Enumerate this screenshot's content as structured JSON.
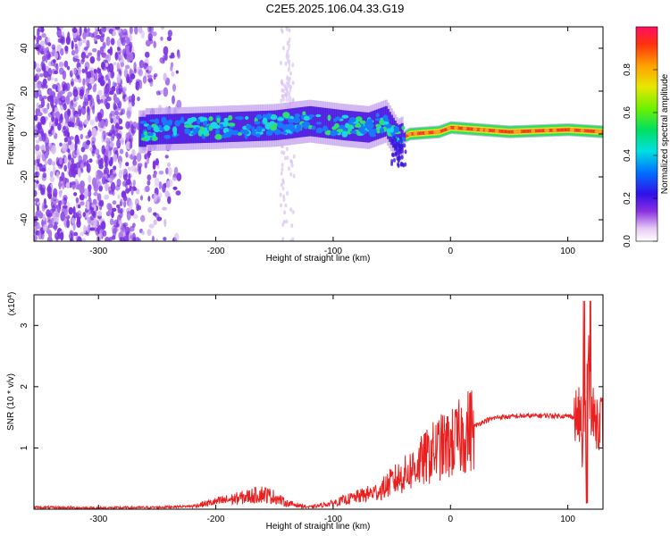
{
  "title": "C2E5.2025.106.04.33.G19",
  "colors": {
    "snr_line": "#e82020",
    "scatter_noise": "#8a3ae6",
    "frame": "#000000"
  },
  "chart_data": [
    {
      "type": "heatmap",
      "xlabel": "Height of straight line (km)",
      "ylabel": "Frequency (Hz)",
      "xlim": [
        -355,
        130
      ],
      "ylim": [
        -50,
        50
      ],
      "x_ticks": [
        -300,
        -200,
        -100,
        0,
        100
      ],
      "y_ticks": [
        -40,
        -20,
        0,
        20,
        40
      ],
      "colorbar": {
        "label": "Normalized spectral amplitude",
        "range": [
          0,
          1
        ],
        "ticks": [
          0.0,
          0.2,
          0.4,
          0.6,
          0.8
        ]
      },
      "ridge": [
        {
          "x": -260,
          "y": 2
        },
        {
          "x": -200,
          "y": 3
        },
        {
          "x": -150,
          "y": 4
        },
        {
          "x": -120,
          "y": 6
        },
        {
          "x": -90,
          "y": 4
        },
        {
          "x": -70,
          "y": 3
        },
        {
          "x": -55,
          "y": 6
        },
        {
          "x": -45,
          "y": -3
        },
        {
          "x": -35,
          "y": 0
        },
        {
          "x": -10,
          "y": 1
        },
        {
          "x": 0,
          "y": 3
        },
        {
          "x": 50,
          "y": 1
        },
        {
          "x": 100,
          "y": 2
        },
        {
          "x": 130,
          "y": 1
        }
      ]
    },
    {
      "type": "line",
      "xlabel": "Height of straight line (km)",
      "ylabel": "SNR (10 * v/v)",
      "scale_label": "(x10",
      "scale_exp": "4",
      "scale_close": ")",
      "xlim": [
        -355,
        130
      ],
      "ylim": [
        0,
        3.5
      ],
      "x_ticks": [
        -300,
        -200,
        -100,
        0,
        100
      ],
      "y_ticks": [
        1,
        2,
        3
      ],
      "series": [
        {
          "x": [
            -355,
            -300,
            -250,
            -220,
            -200,
            -180,
            -160,
            -150,
            -140,
            -120,
            -100,
            -80,
            -60,
            -50,
            -40,
            -30,
            -20,
            -10,
            0,
            10,
            20,
            30,
            40,
            60,
            80,
            100,
            110,
            115,
            118,
            120,
            125,
            130
          ],
          "y": [
            0.03,
            0.02,
            0.03,
            0.05,
            0.12,
            0.18,
            0.25,
            0.2,
            0.1,
            0.03,
            0.1,
            0.2,
            0.3,
            0.45,
            0.55,
            0.7,
            0.85,
            1.0,
            1.05,
            1.2,
            1.35,
            1.45,
            1.5,
            1.52,
            1.53,
            1.52,
            1.5,
            1.2,
            2.5,
            1.5,
            1.47,
            1.45
          ]
        }
      ]
    }
  ]
}
